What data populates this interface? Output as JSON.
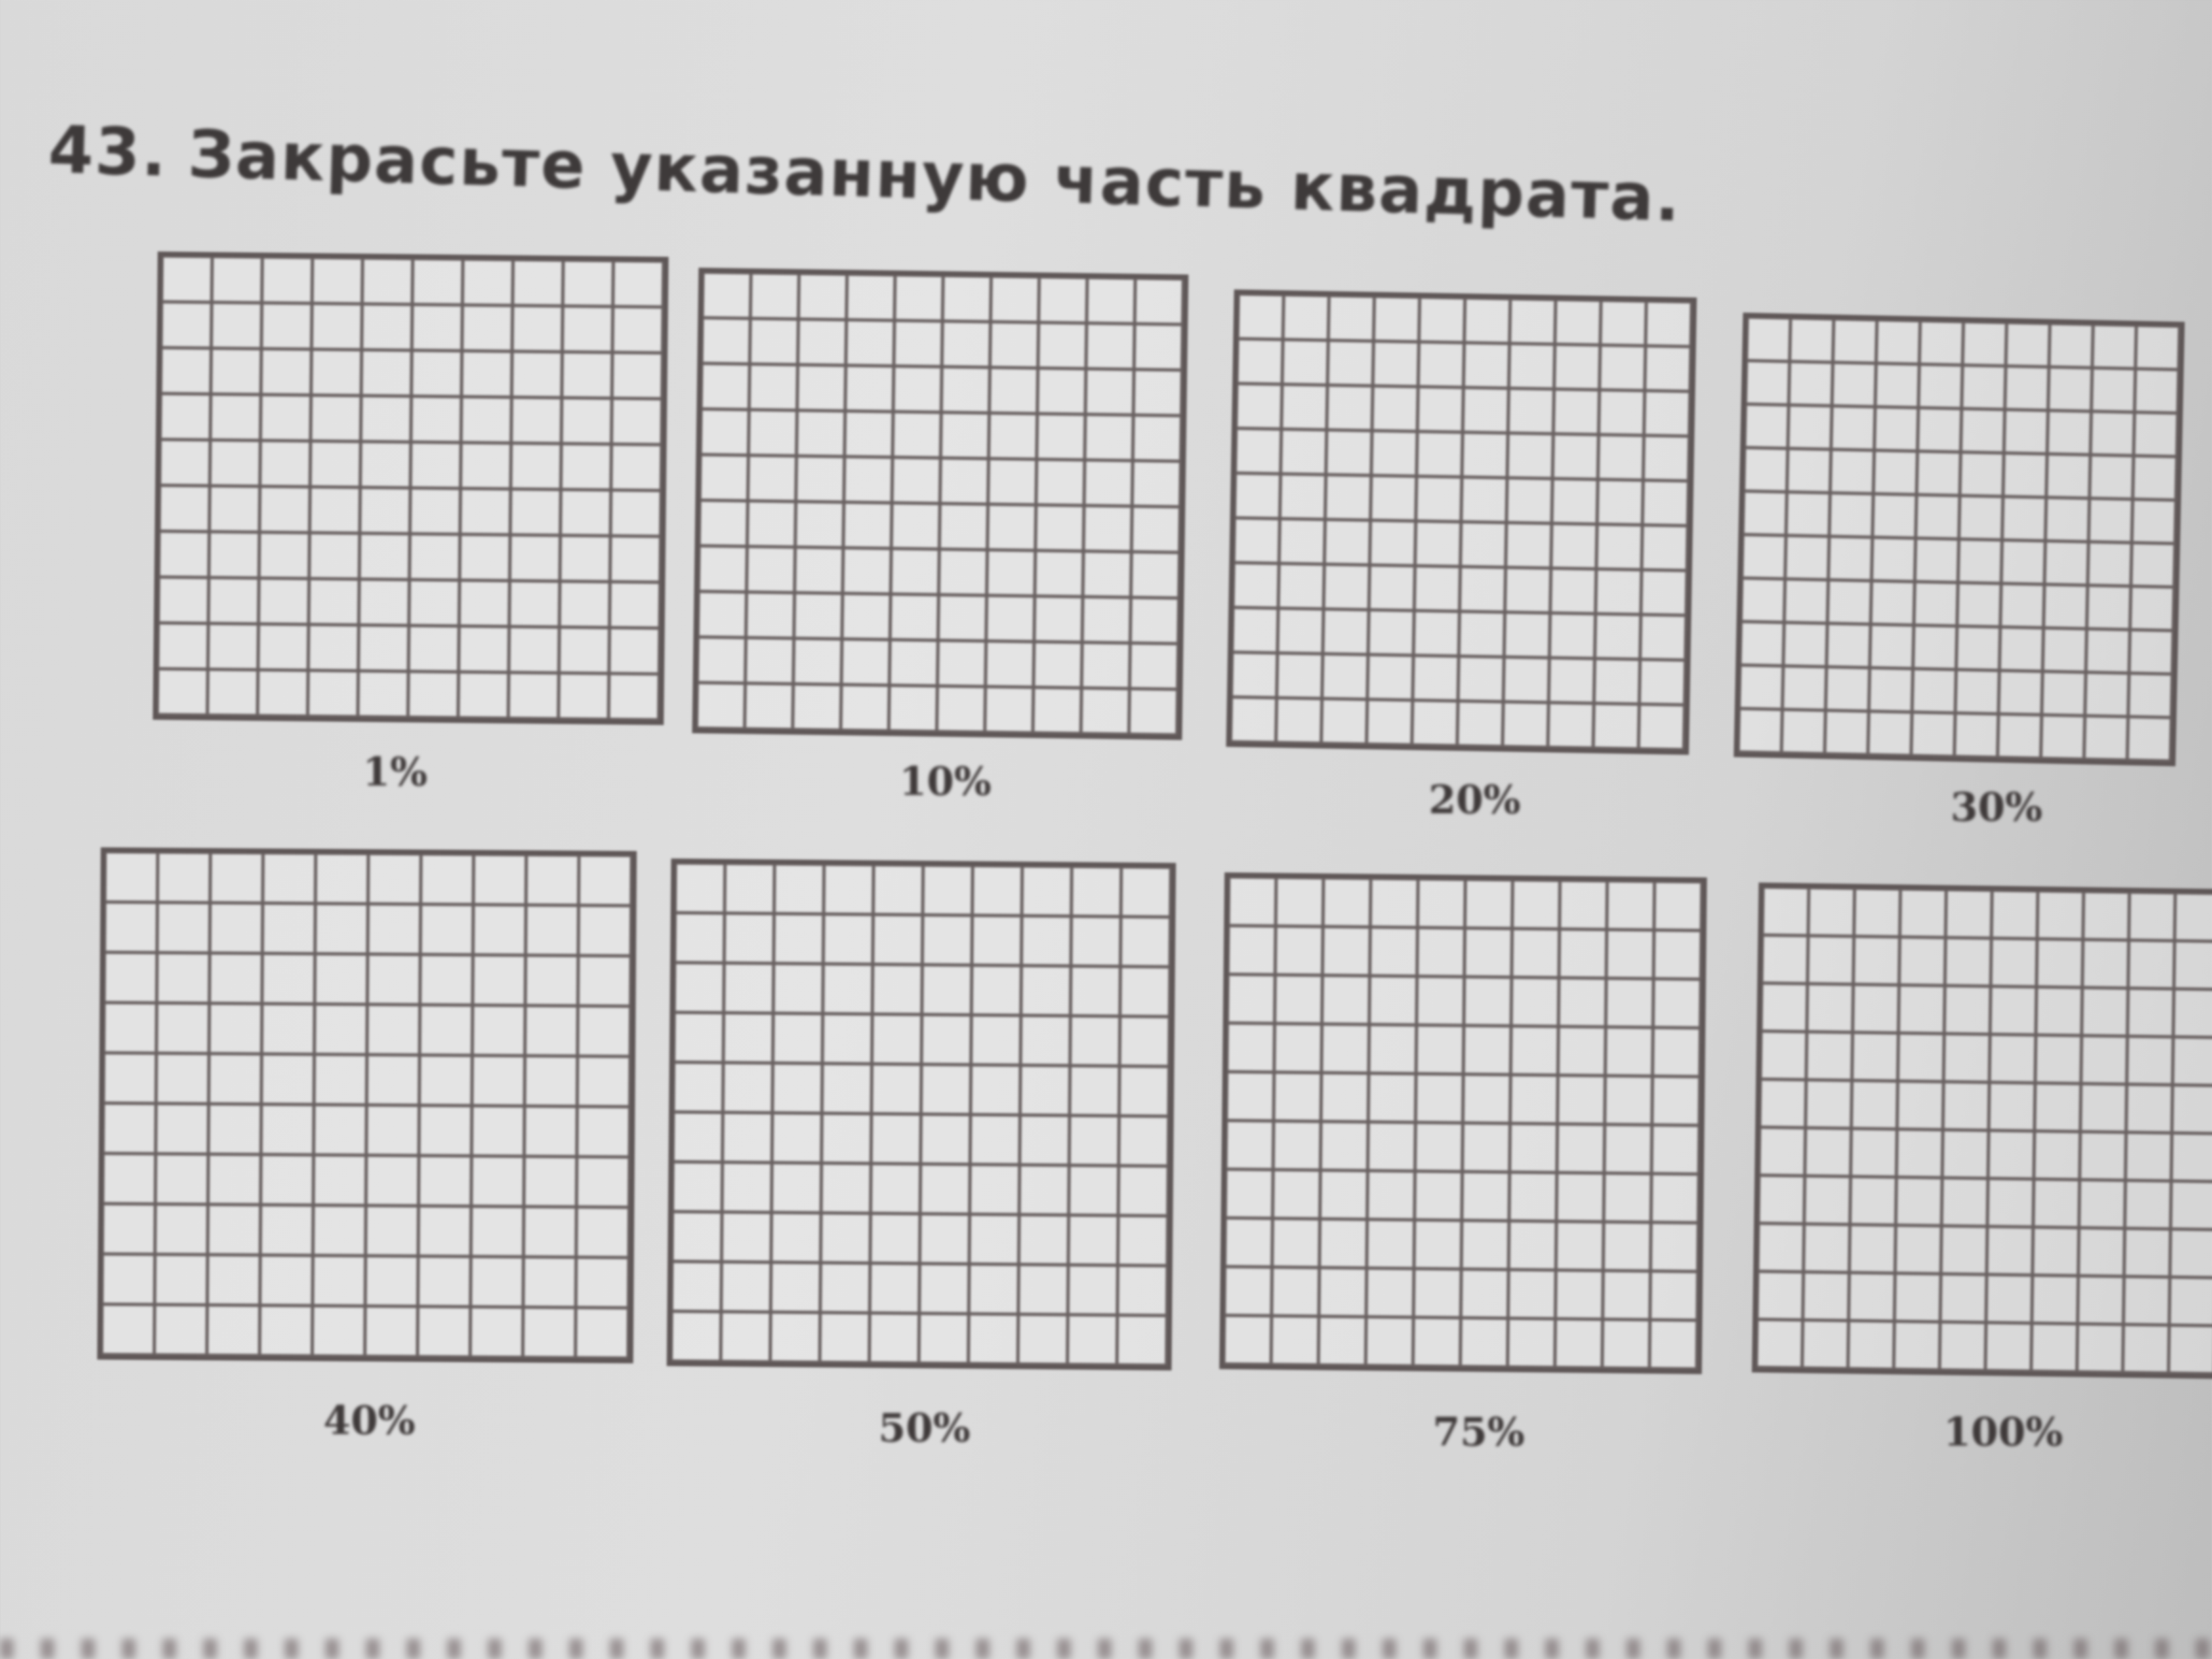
{
  "exercise": {
    "number": "43.",
    "instruction": "Закрасьте указанную часть квадрата.",
    "grid_size": "10x10",
    "squares": [
      {
        "label": "1%"
      },
      {
        "label": "10%"
      },
      {
        "label": "20%"
      },
      {
        "label": "30%"
      },
      {
        "label": "40%"
      },
      {
        "label": "50%"
      },
      {
        "label": "75%"
      },
      {
        "label": "100%"
      }
    ]
  },
  "colors": {
    "ink": "#3f3a3a",
    "paper": "#dadada"
  }
}
